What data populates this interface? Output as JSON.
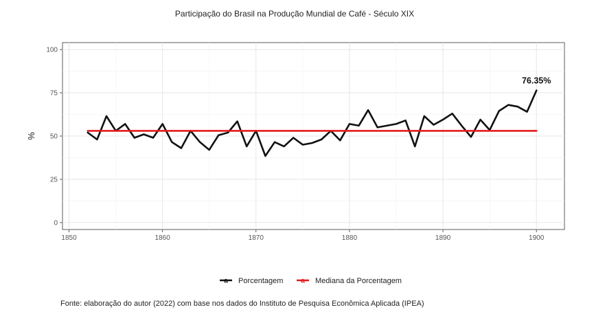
{
  "chart_data": {
    "type": "line",
    "title": "Participação do Brasil na Produção Mundial de Café - Século XIX",
    "xlabel": "",
    "ylabel": "%",
    "xlim": [
      1849.3,
      1903
    ],
    "ylim": [
      -4,
      104
    ],
    "x_ticks": [
      "1850",
      "1860",
      "1870",
      "1880",
      "1890",
      "1900"
    ],
    "y_ticks": [
      "0",
      "25",
      "50",
      "75",
      "100"
    ],
    "grid": true,
    "legend_position": "bottom",
    "series": [
      {
        "name": "Porcentagem",
        "color": "#111111",
        "x": [
          1852,
          1853,
          1854,
          1855,
          1856,
          1857,
          1858,
          1859,
          1860,
          1861,
          1862,
          1863,
          1864,
          1865,
          1866,
          1867,
          1868,
          1869,
          1870,
          1871,
          1872,
          1873,
          1874,
          1875,
          1876,
          1877,
          1878,
          1879,
          1880,
          1881,
          1882,
          1883,
          1884,
          1885,
          1886,
          1887,
          1888,
          1889,
          1890,
          1891,
          1892,
          1893,
          1894,
          1895,
          1896,
          1897,
          1898,
          1899,
          1900
        ],
        "values": [
          52,
          48,
          61.5,
          53,
          57,
          49,
          51,
          49,
          57,
          46.5,
          43,
          53,
          46.5,
          42,
          50.5,
          52,
          58.5,
          44,
          53,
          38.5,
          46.5,
          44,
          49,
          45,
          46,
          48,
          53,
          47.5,
          57,
          56,
          65,
          55,
          56,
          57,
          59,
          44,
          61.5,
          56.5,
          59.5,
          63,
          56,
          49.5,
          59.5,
          53.5,
          64.5,
          68,
          67,
          64,
          76.35
        ]
      },
      {
        "name": "Mediana da Porcentagem",
        "color": "#e31a1c",
        "x": [
          1852,
          1900
        ],
        "values": [
          53,
          53
        ]
      }
    ],
    "annotations": [
      {
        "text": "76.35%",
        "x": 1900,
        "y": 76.35
      }
    ]
  },
  "caption": "Fonte: elaboração do autor (2022) com base nos dados do Instituto de Pesquisa Econômica Aplicada (IPEA)",
  "legend_glyph": "a"
}
